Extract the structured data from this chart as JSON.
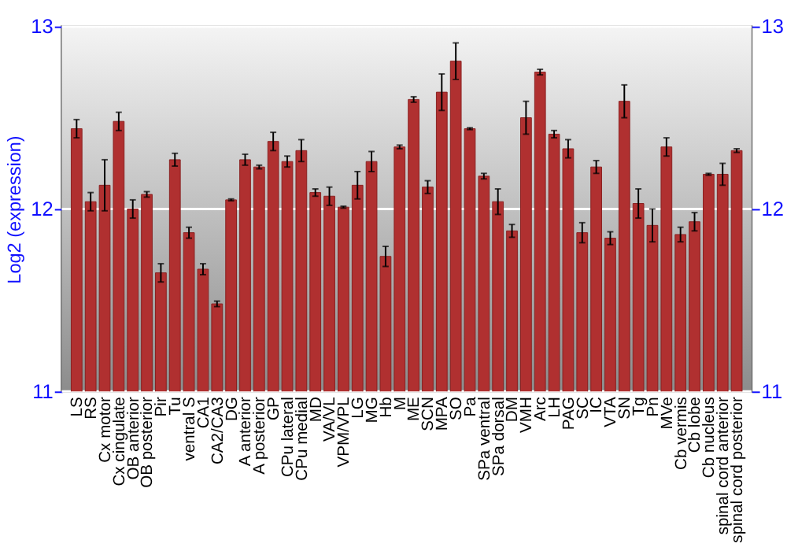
{
  "chart_data": {
    "type": "bar",
    "ylabel": "Log2 (expression)",
    "categories": [
      "LS",
      "RS",
      "Cx motor",
      "Cx cingulate",
      "OB anterior",
      "OB posterior",
      "Pir",
      "Tu",
      "ventral S",
      "CA1",
      "CA2/CA3",
      "DG",
      "A anterior",
      "A posterior",
      "GP",
      "CPu lateral",
      "CPu medial",
      "MD",
      "VA/VL",
      "VPM/VPL",
      "LG",
      "MG",
      "Hb",
      "M",
      "ME",
      "SCN",
      "MPA",
      "SO",
      "Pa",
      "SPa ventral",
      "SPa dorsal",
      "DM",
      "VMH",
      "Arc",
      "LH",
      "PAG",
      "SC",
      "IC",
      "VTA",
      "SN",
      "Tg",
      "Pn",
      "MVe",
      "Cb vermis",
      "Cb lobe",
      "Cb nucleus",
      "spinal cord anterior",
      "spinal cord posterior"
    ],
    "values": [
      12.44,
      12.04,
      12.13,
      12.48,
      12.0,
      12.08,
      11.65,
      12.27,
      11.87,
      11.67,
      11.48,
      12.05,
      12.27,
      12.23,
      12.37,
      12.26,
      12.32,
      12.09,
      12.07,
      12.01,
      12.13,
      12.26,
      11.74,
      12.34,
      12.6,
      12.12,
      12.64,
      12.81,
      12.44,
      12.18,
      12.04,
      11.88,
      12.5,
      12.75,
      12.41,
      12.33,
      11.87,
      12.23,
      11.84,
      12.59,
      12.03,
      11.91,
      12.34,
      11.86,
      11.93,
      12.19,
      12.19,
      12.32
    ],
    "errors": [
      0.05,
      0.05,
      0.14,
      0.05,
      0.05,
      0.015,
      0.05,
      0.035,
      0.03,
      0.03,
      0.015,
      0.005,
      0.03,
      0.01,
      0.05,
      0.03,
      0.06,
      0.02,
      0.05,
      0.005,
      0.075,
      0.055,
      0.055,
      0.01,
      0.015,
      0.035,
      0.1,
      0.1,
      0.005,
      0.015,
      0.07,
      0.035,
      0.09,
      0.015,
      0.02,
      0.05,
      0.055,
      0.035,
      0.035,
      0.09,
      0.08,
      0.09,
      0.05,
      0.04,
      0.05,
      0.005,
      0.06,
      0.01
    ],
    "color": "#b03030",
    "ylim": [
      11,
      13
    ],
    "yticks": [
      11,
      12,
      13
    ],
    "y2lim": [
      11,
      13
    ],
    "y2ticks": [
      11,
      12,
      13
    ],
    "grid": "y"
  }
}
